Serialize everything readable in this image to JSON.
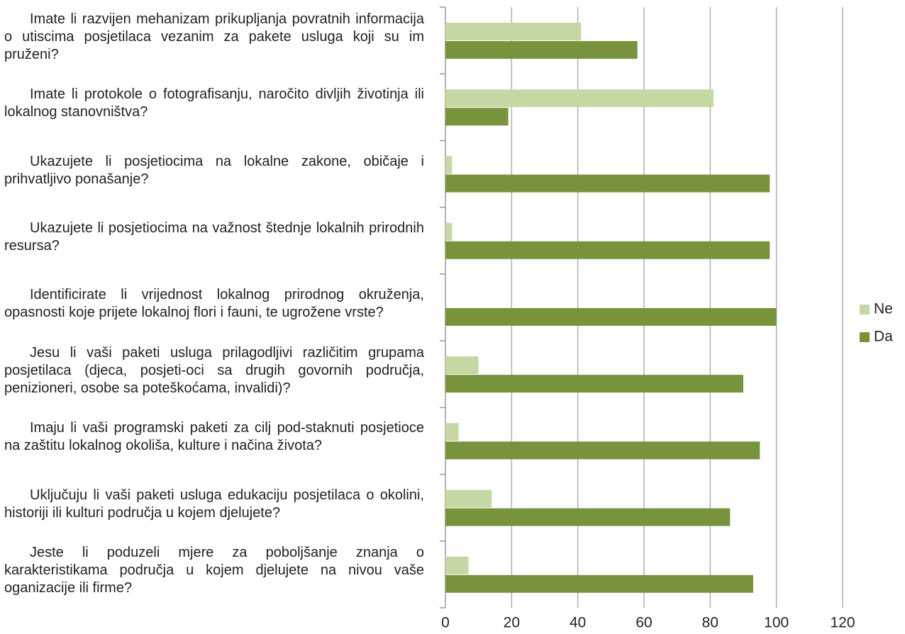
{
  "chart_data": {
    "type": "hbar",
    "categories": [
      "Imate li razvijen mehanizam prikupljanja povratnih informacija o utiscima posjetilaca vezanim za pakete usluga koji su im pruženi?",
      "Imate li protokole o fotografisanju, naročito divljih životinja ili lokalnog stanovništva?",
      "Ukazujete li posjetiocima na lokalne zakone, običaje i prihvatljivo ponašanje?",
      "Ukazujete li posjetiocima na važnost štednje lokalnih prirodnih resursa?",
      "Identificirate li vrijednost lokalnog prirodnog okruženja, opasnosti koje prijete lokalnoj flori i fauni, te ugrožene vrste?",
      "Jesu li vaši paketi usluga prilagodljivi različitim grupama posjetilaca (djeca, posjeti-oci sa drugih govornih područja, penizioneri, osobe sa poteškoćama, invalidi)?",
      "Imaju li vaši programski paketi za cilj pod-staknuti posjetioce na zaštitu lokalnog okoliša, kulture i načina života?",
      "Uključuju li vaši paketi usluga edukaciju posjetilaca o okolini, historiji ili kulturi područja u kojem djelujete?",
      "Jeste li poduzeli mjere za poboljšanje znanja o karakteristikama područja u kojem djelujete na nivou vaše oganizacije ili firme?"
    ],
    "series": [
      {
        "name": "Ne",
        "color": "#c5d8a4",
        "values": [
          41,
          81,
          2,
          2,
          0,
          10,
          4,
          14,
          7
        ]
      },
      {
        "name": "Da",
        "color": "#77933c",
        "values": [
          58,
          19,
          98,
          98,
          100,
          90,
          95,
          86,
          93
        ]
      }
    ],
    "xlim": [
      0,
      120
    ],
    "xticks": [
      0,
      20,
      40,
      60,
      80,
      100,
      120
    ],
    "grid": true,
    "legend": "right"
  }
}
